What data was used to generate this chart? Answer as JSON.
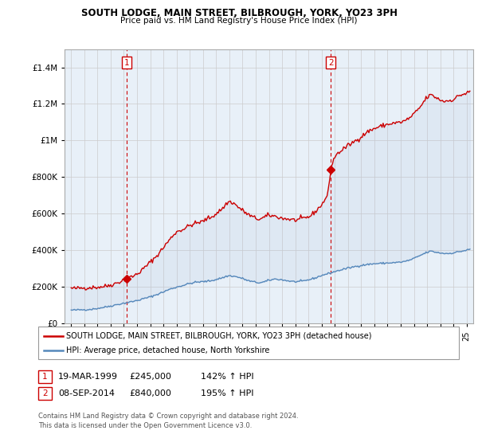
{
  "title": "SOUTH LODGE, MAIN STREET, BILBROUGH, YORK, YO23 3PH",
  "subtitle": "Price paid vs. HM Land Registry's House Price Index (HPI)",
  "legend_line1": "SOUTH LODGE, MAIN STREET, BILBROUGH, YORK, YO23 3PH (detached house)",
  "legend_line2": "HPI: Average price, detached house, North Yorkshire",
  "annotation1_label": "1",
  "annotation1_date": "19-MAR-1999",
  "annotation1_price": "£245,000",
  "annotation1_hpi": "142% ↑ HPI",
  "annotation1_year": 1999.21,
  "annotation1_value": 245000,
  "annotation2_label": "2",
  "annotation2_date": "08-SEP-2014",
  "annotation2_price": "£840,000",
  "annotation2_hpi": "195% ↑ HPI",
  "annotation2_year": 2014.69,
  "annotation2_value": 840000,
  "footer": "Contains HM Land Registry data © Crown copyright and database right 2024.\nThis data is licensed under the Open Government Licence v3.0.",
  "red_color": "#cc0000",
  "blue_color": "#5588bb",
  "fill_color": "#ddeeff",
  "grid_color": "#cccccc",
  "bg_color": "#ffffff",
  "plot_bg_color": "#e8f0f8",
  "ylim": [
    0,
    1500000
  ],
  "yticks": [
    0,
    200000,
    400000,
    600000,
    800000,
    1000000,
    1200000,
    1400000
  ],
  "xlim_start": 1995.0,
  "xlim_end": 2025.3
}
